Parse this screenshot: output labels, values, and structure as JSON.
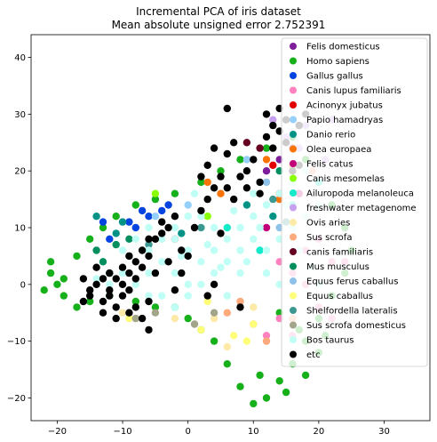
{
  "chart_data": {
    "type": "scatter",
    "title": "Incremental PCA of iris dataset",
    "subtitle": "Mean absolute unsigned error 2.752391",
    "xlabel": "",
    "ylabel": "",
    "xlim": [
      -24,
      37
    ],
    "ylim": [
      -24,
      44
    ],
    "x_ticks": [
      -20,
      -10,
      0,
      10,
      20,
      30
    ],
    "y_ticks": [
      -20,
      -10,
      0,
      10,
      20,
      30,
      40
    ],
    "x_tick_labels": [
      "−20",
      "−10",
      "0",
      "10",
      "20",
      "30"
    ],
    "y_tick_labels": [
      "−20",
      "−10",
      "0",
      "10",
      "20",
      "30",
      "40"
    ],
    "grid": false,
    "legend_position": "top-right",
    "series": [
      {
        "name": "Felis domesticus",
        "color": "#7e1e9c",
        "points": [
          [
            12,
            20
          ],
          [
            14,
            22
          ],
          [
            16,
            24
          ]
        ]
      },
      {
        "name": "Homo sapiens",
        "color": "#15b01a",
        "points": [
          [
            -20,
            0
          ],
          [
            -21,
            2
          ],
          [
            -19,
            -2
          ],
          [
            -17,
            5
          ],
          [
            -15,
            8
          ],
          [
            -13,
            10
          ],
          [
            -11,
            12
          ],
          [
            -8,
            14
          ],
          [
            -5,
            15
          ],
          [
            -2,
            16
          ],
          [
            2,
            18
          ],
          [
            5,
            20
          ],
          [
            8,
            22
          ],
          [
            12,
            24
          ],
          [
            16,
            26
          ],
          [
            18,
            22
          ],
          [
            20,
            18
          ],
          [
            22,
            14
          ],
          [
            24,
            10
          ],
          [
            25,
            6
          ],
          [
            24,
            2
          ],
          [
            22,
            -2
          ],
          [
            20,
            -6
          ],
          [
            18,
            -10
          ],
          [
            16,
            -14
          ],
          [
            14,
            -17
          ],
          [
            12,
            -20
          ],
          [
            10,
            -21
          ],
          [
            8,
            -18
          ],
          [
            6,
            -14
          ],
          [
            4,
            -10
          ],
          [
            2,
            -8
          ],
          [
            0,
            -6
          ],
          [
            -2,
            -4
          ],
          [
            -5,
            -4
          ],
          [
            -8,
            -3
          ],
          [
            -12,
            -2
          ],
          [
            -15,
            -3
          ],
          [
            -17,
            -4
          ],
          [
            -19,
            1
          ],
          [
            -22,
            -1
          ],
          [
            -21,
            4
          ],
          [
            14,
            -5
          ],
          [
            17,
            -8
          ],
          [
            20,
            -12
          ],
          [
            15,
            -19
          ],
          [
            11,
            -16
          ],
          [
            18,
            -16
          ],
          [
            21,
            -9
          ]
        ]
      },
      {
        "name": "Gallus gallus",
        "color": "#0343df",
        "points": [
          [
            -9,
            11
          ],
          [
            -6,
            12
          ],
          [
            -4,
            13
          ],
          [
            -12,
            8
          ],
          [
            -13,
            11
          ],
          [
            -8,
            10
          ],
          [
            -3,
            14
          ],
          [
            -7,
            13
          ]
        ]
      },
      {
        "name": "Canis lupus familiaris",
        "color": "#ff81c0",
        "points": [
          [
            16,
            2
          ],
          [
            18,
            0
          ],
          [
            20,
            -4
          ],
          [
            22,
            4
          ],
          [
            14,
            -6
          ],
          [
            12,
            -9
          ],
          [
            16,
            -9
          ],
          [
            20,
            8
          ],
          [
            24,
            4
          ],
          [
            22,
            -6
          ],
          [
            10,
            -7
          ],
          [
            18,
            6
          ],
          [
            14,
            4
          ]
        ]
      },
      {
        "name": "Acinonyx jubatus",
        "color": "#e50000",
        "points": [
          [
            13,
            21
          ],
          [
            14,
            16
          ],
          [
            -2,
            8
          ]
        ]
      },
      {
        "name": "Papio hamadryas",
        "color": "#95d0fc",
        "points": [
          [
            9,
            22
          ],
          [
            11,
            18
          ],
          [
            -5,
            12
          ],
          [
            0,
            14
          ]
        ]
      },
      {
        "name": "Danio rerio",
        "color": "#029386",
        "points": [
          [
            -11,
            9
          ],
          [
            -14,
            12
          ],
          [
            -9,
            5
          ],
          [
            9,
            14
          ],
          [
            13,
            12
          ],
          [
            -1,
            9
          ],
          [
            -10,
            11
          ]
        ]
      },
      {
        "name": "Olea europaea",
        "color": "#f97306",
        "points": [
          [
            12,
            22
          ],
          [
            3,
            18
          ],
          [
            5,
            16
          ],
          [
            16,
            21
          ],
          [
            14,
            15
          ]
        ]
      },
      {
        "name": "Felis catus",
        "color": "#c20078",
        "points": [
          [
            17,
            16
          ],
          [
            12,
            10
          ]
        ]
      },
      {
        "name": "Canis mesomelas",
        "color": "#89fe05",
        "points": [
          [
            3,
            12
          ],
          [
            -5,
            16
          ]
        ]
      },
      {
        "name": "Ailuropoda melanoleuca",
        "color": "#13eac9",
        "points": [
          [
            6,
            10
          ],
          [
            11,
            6
          ],
          [
            16,
            14
          ],
          [
            20,
            18
          ]
        ]
      },
      {
        "name": "freshwater metagenome",
        "color": "#c79fef",
        "points": [
          [
            13,
            29
          ],
          [
            15,
            26
          ],
          [
            18,
            28
          ],
          [
            17,
            24
          ],
          [
            22,
            29
          ],
          [
            21,
            22
          ]
        ]
      },
      {
        "name": "Ovis aries",
        "color": "#fdeaa8",
        "points": [
          [
            -2,
            -6
          ],
          [
            4,
            -6
          ],
          [
            6,
            -11
          ],
          [
            10,
            -4
          ],
          [
            -10,
            -5
          ]
        ]
      },
      {
        "name": "Sus scrofa",
        "color": "#fca97c",
        "points": [
          [
            8,
            -3
          ],
          [
            12,
            -10
          ],
          [
            6,
            -5
          ],
          [
            16,
            -6
          ],
          [
            19,
            20
          ]
        ]
      },
      {
        "name": "canis familiaris",
        "color": "#650021",
        "points": [
          [
            9,
            25
          ],
          [
            11,
            24
          ]
        ]
      },
      {
        "name": "Mus musculus",
        "color": "#028f5d",
        "points": [
          [
            -13,
            4
          ],
          [
            -11,
            7
          ],
          [
            -9,
            8
          ],
          [
            -14,
            6
          ],
          [
            16,
            18
          ],
          [
            -12,
            2
          ],
          [
            14,
            20
          ]
        ]
      },
      {
        "name": "Equus ferus caballus",
        "color": "#8ec2e9",
        "points": [
          [
            12,
            18
          ],
          [
            14,
            10
          ],
          [
            -2,
            12
          ]
        ]
      },
      {
        "name": "Equus caballus",
        "color": "#fffe7a",
        "points": [
          [
            2,
            -8
          ],
          [
            7,
            -9
          ],
          [
            10,
            -7
          ],
          [
            9,
            -10
          ],
          [
            3,
            -3
          ],
          [
            -9,
            -6
          ]
        ]
      },
      {
        "name": "Shelfordella lateralis",
        "color": "#3c9992",
        "points": [
          [
            15,
            11
          ],
          [
            13,
            15
          ],
          [
            2,
            10
          ],
          [
            -6,
            7
          ]
        ]
      },
      {
        "name": "Sus scrofa domesticus",
        "color": "#a2a589",
        "points": [
          [
            -5,
            -5
          ],
          [
            -8,
            -6
          ],
          [
            4,
            -5
          ],
          [
            1,
            -7
          ]
        ]
      },
      {
        "name": "Bos taurus",
        "color": "#c0fff5",
        "points": [
          [
            -8,
            8
          ],
          [
            -6,
            6
          ],
          [
            -4,
            4
          ],
          [
            -2,
            2
          ],
          [
            0,
            0
          ],
          [
            2,
            4
          ],
          [
            4,
            6
          ],
          [
            6,
            8
          ],
          [
            8,
            10
          ],
          [
            10,
            12
          ],
          [
            12,
            14
          ],
          [
            14,
            16
          ],
          [
            16,
            18
          ],
          [
            18,
            20
          ],
          [
            -4,
            -2
          ],
          [
            -2,
            -4
          ],
          [
            0,
            -2
          ],
          [
            2,
            0
          ],
          [
            4,
            2
          ],
          [
            6,
            4
          ],
          [
            8,
            6
          ],
          [
            10,
            8
          ],
          [
            12,
            6
          ],
          [
            14,
            8
          ],
          [
            16,
            10
          ],
          [
            18,
            12
          ],
          [
            20,
            14
          ],
          [
            -6,
            2
          ],
          [
            -8,
            0
          ],
          [
            -10,
            2
          ],
          [
            -10,
            6
          ],
          [
            -6,
            10
          ],
          [
            -2,
            8
          ],
          [
            2,
            12
          ],
          [
            0,
            6
          ],
          [
            4,
            10
          ],
          [
            10,
            16
          ],
          [
            8,
            2
          ],
          [
            6,
            -2
          ],
          [
            12,
            2
          ],
          [
            14,
            0
          ],
          [
            -4,
            8
          ],
          [
            -2,
            10
          ],
          [
            0,
            12
          ],
          [
            -12,
            0
          ],
          [
            -6,
            -2
          ],
          [
            3,
            7
          ],
          [
            11,
            10
          ],
          [
            15,
            14
          ],
          [
            9,
            4
          ],
          [
            -14,
            1
          ],
          [
            -1,
            5
          ],
          [
            5,
            3
          ],
          [
            17,
            6
          ],
          [
            19,
            3
          ],
          [
            20,
            0
          ],
          [
            7,
            13
          ],
          [
            1,
            16
          ]
        ]
      },
      {
        "name": "etc",
        "color": "#000000",
        "points": [
          [
            -14,
            0
          ],
          [
            -12,
            -1
          ],
          [
            -13,
            -3
          ],
          [
            -15,
            -2
          ],
          [
            -16,
            1
          ],
          [
            -11,
            1
          ],
          [
            -10,
            -2
          ],
          [
            -9,
            -1
          ],
          [
            -8,
            -4
          ],
          [
            -9,
            2
          ],
          [
            -8,
            4
          ],
          [
            -7,
            6
          ],
          [
            -6,
            5
          ],
          [
            -5,
            8
          ],
          [
            -4,
            9
          ],
          [
            -3,
            10
          ],
          [
            -2,
            12
          ],
          [
            -4,
            11
          ],
          [
            -6,
            8
          ],
          [
            -7,
            3
          ],
          [
            -5,
            2
          ],
          [
            -3,
            4
          ],
          [
            -1,
            6
          ],
          [
            -1,
            2
          ],
          [
            -2,
            -1
          ],
          [
            -6,
            -3
          ],
          [
            -7,
            -6
          ],
          [
            -6,
            -8
          ],
          [
            -9,
            -5
          ],
          [
            -11,
            -4
          ],
          [
            -12,
            -2
          ],
          [
            -14,
            3
          ],
          [
            -15,
            -1
          ],
          [
            -16,
            -3
          ],
          [
            -13,
            1
          ],
          [
            -10,
            3
          ],
          [
            -8,
            1
          ],
          [
            -10,
            0
          ],
          [
            -12,
            2
          ],
          [
            -9,
            5
          ],
          [
            3,
            15
          ],
          [
            4,
            17
          ],
          [
            2,
            13
          ],
          [
            1,
            10
          ],
          [
            0,
            5
          ],
          [
            2,
            19
          ],
          [
            3,
            21
          ],
          [
            4,
            24
          ],
          [
            5,
            19
          ],
          [
            6,
            17
          ],
          [
            7,
            15
          ],
          [
            8,
            19
          ],
          [
            6,
            23
          ],
          [
            7,
            25
          ],
          [
            9,
            20
          ],
          [
            10,
            22
          ],
          [
            11,
            18
          ],
          [
            12,
            26
          ],
          [
            13,
            28
          ],
          [
            14,
            27
          ],
          [
            15,
            25
          ],
          [
            12,
            30
          ],
          [
            14,
            31
          ],
          [
            15,
            29
          ],
          [
            17,
            28
          ],
          [
            18,
            30
          ],
          [
            13,
            24
          ],
          [
            16,
            20
          ],
          [
            17,
            21
          ],
          [
            11,
            16
          ],
          [
            9,
            17
          ],
          [
            5,
            9
          ],
          [
            4,
            0
          ],
          [
            3,
            -2
          ],
          [
            8,
            -4
          ],
          [
            6,
            31
          ],
          [
            -13,
            -5
          ],
          [
            -11,
            -6
          ]
        ]
      }
    ]
  }
}
